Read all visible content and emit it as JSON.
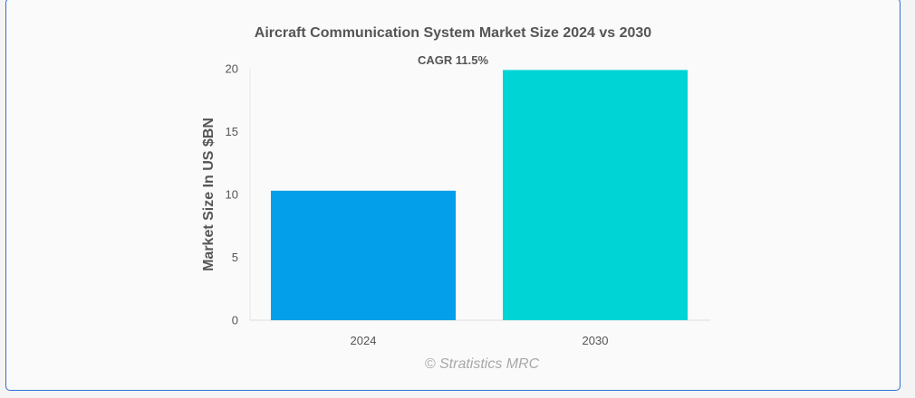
{
  "chart_data": {
    "type": "bar",
    "title": "Aircraft Communication System Market Size 2024 vs 2030",
    "annotation": "CAGR 11.5%",
    "categories": [
      "2024",
      "2030"
    ],
    "values": [
      10.3,
      19.9
    ],
    "ylabel": "Market Size In US $BN",
    "xlabel": "",
    "ylim": [
      0,
      20
    ],
    "yticks": [
      0,
      5,
      10,
      15,
      20
    ],
    "grid": false,
    "legend": "none",
    "colors": [
      "#039fea",
      "#00d4d4"
    ],
    "credit": "© Stratistics MRC"
  }
}
